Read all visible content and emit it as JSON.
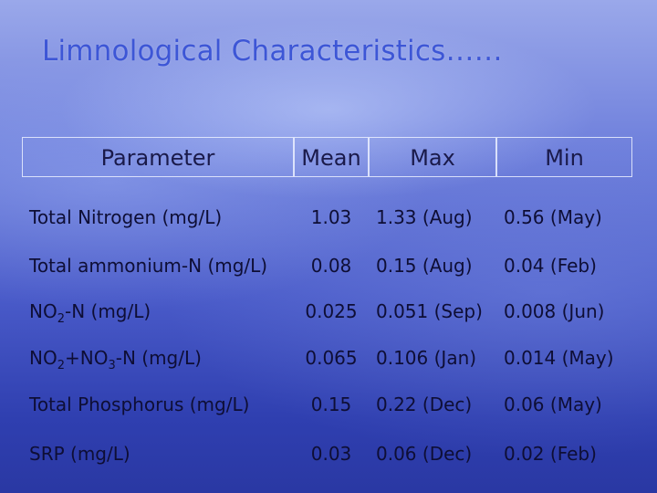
{
  "title": "Limnological Characteristics……",
  "headers": {
    "parameter": "Parameter",
    "mean": "Mean",
    "max": "Max",
    "min": "Min"
  },
  "rows": [
    {
      "param": "Total Nitrogen (mg/L)",
      "mean": "1.03",
      "max": "1.33 (Aug)",
      "min": "0.56 (May)"
    },
    {
      "param": "Total ammonium-N (mg/L)",
      "mean": "0.08",
      "max": "0.15 (Aug)",
      "min": "0.04 (Feb)"
    },
    {
      "param_a": "NO",
      "param_sub1": "2",
      "param_b": "-N (mg/L)",
      "mean": "0.025",
      "max": "0.051 (Sep)",
      "min": "0.008 (Jun)"
    },
    {
      "param_a": "NO",
      "param_sub1": "2",
      "param_b": "+NO",
      "param_sub2": "3",
      "param_c": "-N (mg/L)",
      "mean": "0.065",
      "max": "0.106 (Jan)",
      "min": "0.014 (May)"
    },
    {
      "param": "Total Phosphorus (mg/L)",
      "mean": "0.15",
      "max": "0.22 (Dec)",
      "min": "0.06 (May)"
    },
    {
      "param": "SRP (mg/L)",
      "mean": "0.03",
      "max": "0.06 (Dec)",
      "min": "0.02 (Feb)"
    }
  ]
}
